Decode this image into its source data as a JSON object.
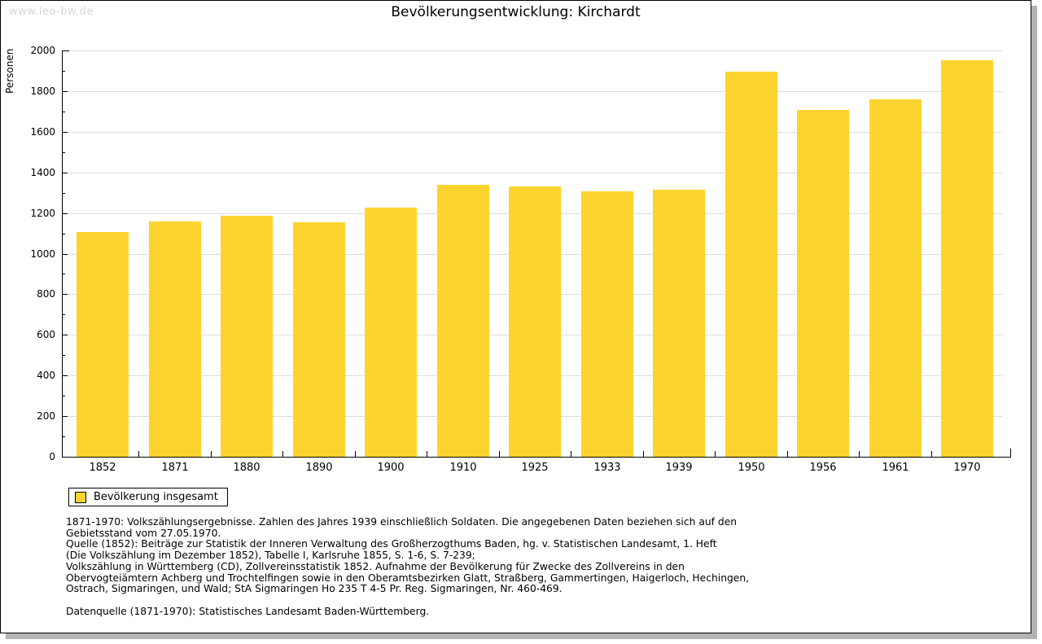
{
  "watermark": "www.leo-bw.de",
  "header": {
    "title": "Bevölkerungsentwicklung: Kirchardt"
  },
  "legend": {
    "label": "Bevölkerung insgesamt"
  },
  "footnotes": [
    "1871-1970: Volkszählungsergebnisse. Zahlen des Jahres 1939 einschließlich Soldaten. Die angegebenen Daten beziehen sich auf den",
    "Gebietsstand vom 27.05.1970.",
    "Quelle (1852): Beiträge zur Statistik der Inneren Verwaltung des Großherzogthums Baden, hg. v. Statistischen Landesamt, 1. Heft",
    "(Die Volkszählung im Dezember 1852), Tabelle I, Karlsruhe 1855, S. 1-6, S. 7-239;",
    "Volkszählung in Württemberg (CD), Zollvereinsstatistik 1852. Aufnahme der Bevölkerung für Zwecke des Zollvereins in den",
    "Obervogteiämtern Achberg und Trochtelfingen sowie in den Oberamtsbezirken Glatt, Straßberg, Gammertingen, Haigerloch, Hechingen,",
    "Ostrach, Sigmaringen, und Wald; StA Sigmaringen Ho 235 T 4-5 Pr. Reg. Sigmaringen, Nr. 460-469.",
    "",
    "Datenquelle (1871-1970): Statistisches Landesamt Baden-Württemberg."
  ],
  "chart_data": {
    "type": "bar",
    "title": "Bevölkerungsentwicklung: Kirchardt",
    "xlabel": "",
    "ylabel": "Personen",
    "series_name": "Bevölkerung insgesamt",
    "categories": [
      "1852",
      "1871",
      "1880",
      "1890",
      "1900",
      "1910",
      "1925",
      "1933",
      "1939",
      "1950",
      "1956",
      "1961",
      "1970"
    ],
    "values": [
      1108,
      1160,
      1186,
      1155,
      1226,
      1338,
      1330,
      1306,
      1313,
      1897,
      1706,
      1758,
      1952
    ],
    "ylim": [
      0,
      2000
    ],
    "yticks": [
      0,
      200,
      400,
      600,
      800,
      1000,
      1200,
      1400,
      1600,
      1800,
      2000
    ],
    "minor_ytick_interval": 100,
    "grid": true,
    "legend_position": "bottom-left",
    "bar_color": "#FCD42F",
    "grid_color": "#DDDDDD",
    "axis_color": "#000000"
  },
  "colors": {
    "background": "#FFFFFF",
    "watermark": "#D6D6D6",
    "frame_border": "#000000",
    "shadow": "#B3B3B3"
  }
}
